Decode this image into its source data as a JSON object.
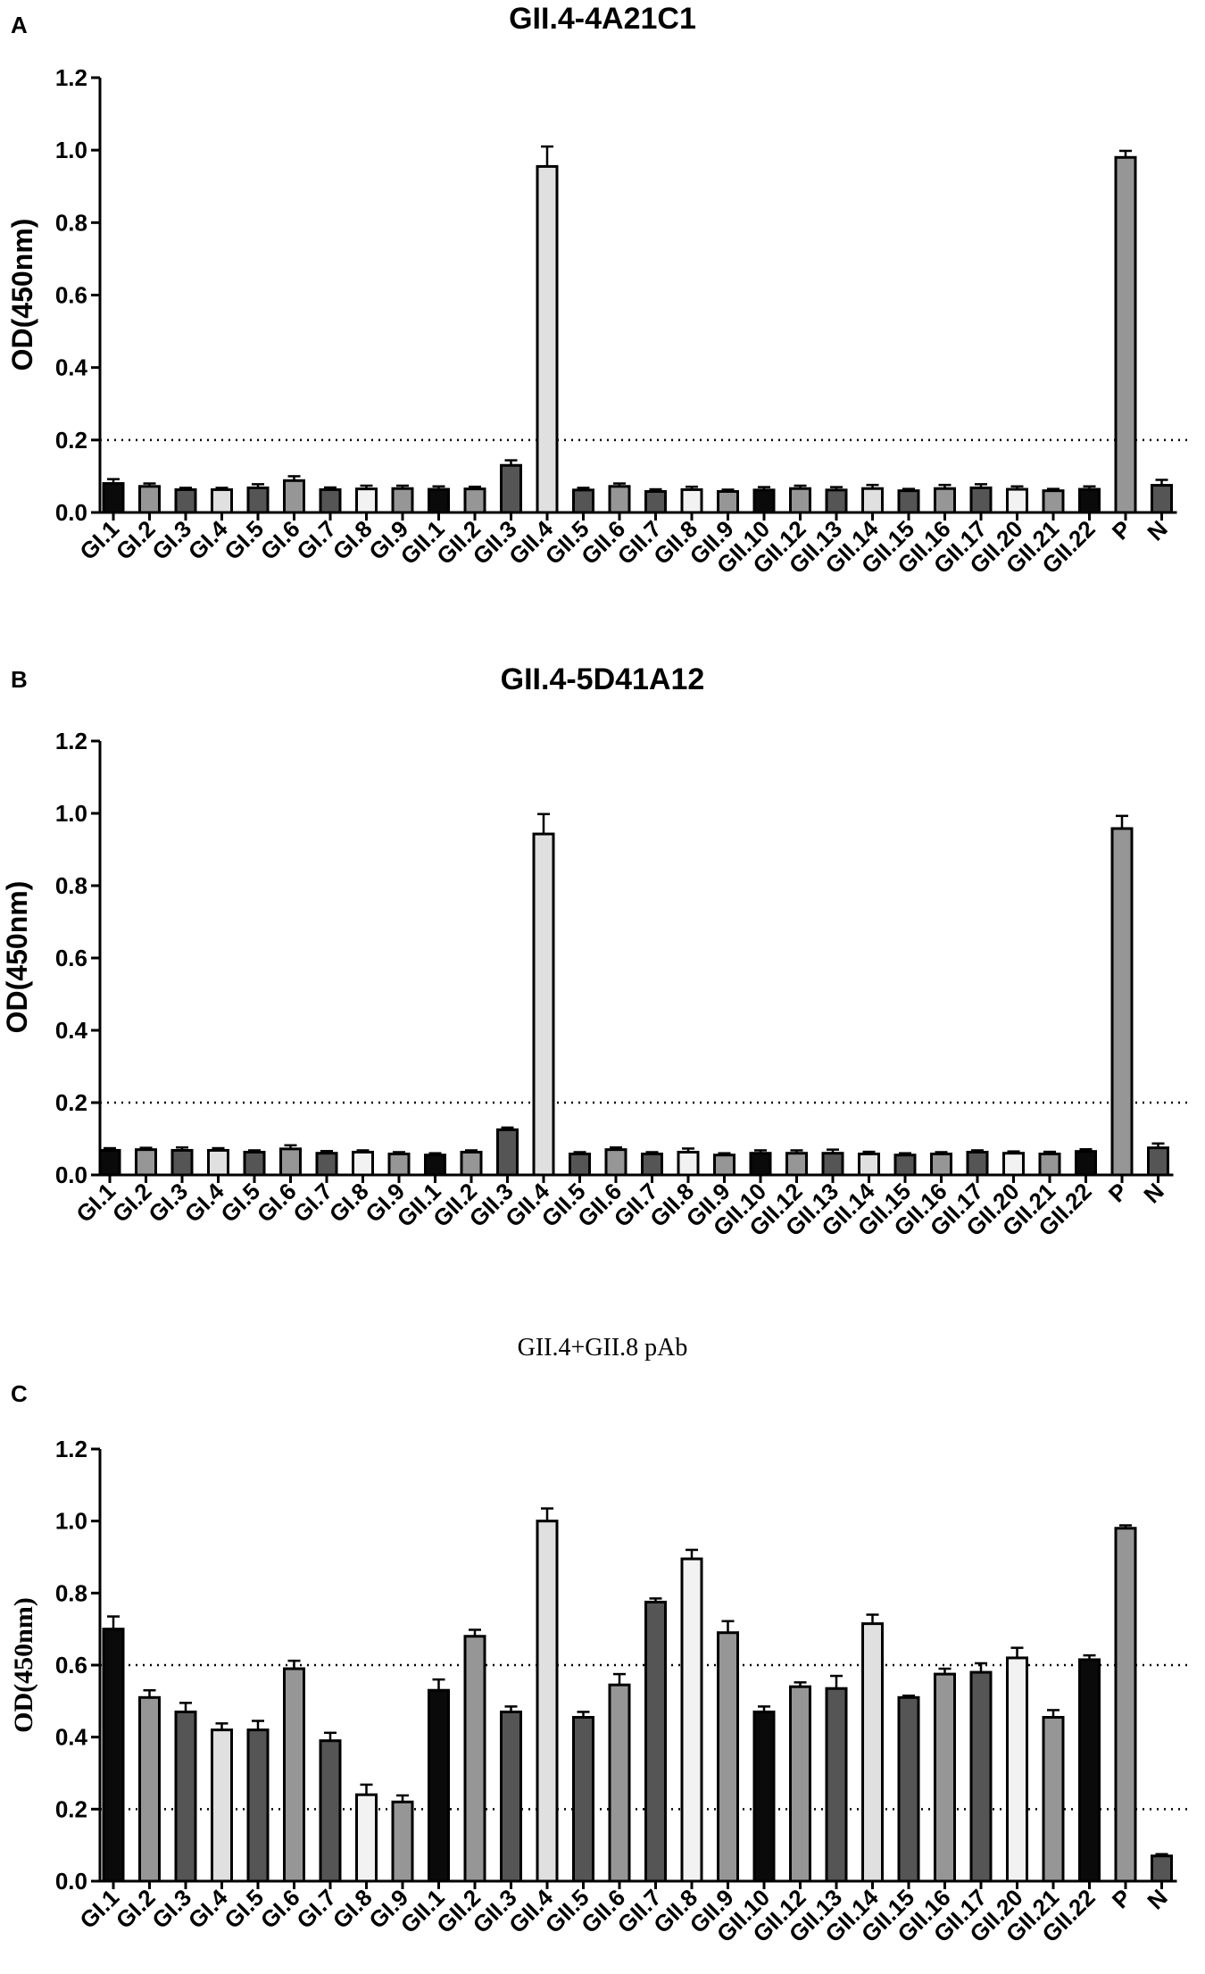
{
  "colors": {
    "black": "#0a0a0a",
    "mid_gray": "#969696",
    "dark_gray": "#555555",
    "light_gray": "#e0e0e0",
    "very_light": "#f2f2f2",
    "axis": "#000000"
  },
  "chart_data": [
    {
      "panel": "A",
      "type": "bar",
      "title": "GII.4-4A21C1",
      "xlabel": "",
      "ylabel": "OD(450nm)",
      "ylim": [
        0,
        1.2
      ],
      "yticks": [
        "0.0",
        "0.2",
        "0.4",
        "0.6",
        "0.8",
        "1.0",
        "1.2"
      ],
      "cutoff_lines": [
        0.2
      ],
      "grid": false,
      "categories": [
        "GI.1",
        "GI.2",
        "GI.3",
        "GI.4",
        "GI.5",
        "GI.6",
        "GI.7",
        "GI.8",
        "GI.9",
        "GII.1",
        "GII.2",
        "GII.3",
        "GII.4",
        "GII.5",
        "GII.6",
        "GII.7",
        "GII.8",
        "GII.9",
        "GII.10",
        "GII.12",
        "GII.13",
        "GII.14",
        "GII.15",
        "GII.16",
        "GII.17",
        "GII.20",
        "GII.21",
        "GII.22",
        "P",
        "N"
      ],
      "values": [
        0.08,
        0.072,
        0.063,
        0.063,
        0.068,
        0.088,
        0.063,
        0.065,
        0.066,
        0.064,
        0.065,
        0.13,
        0.955,
        0.062,
        0.072,
        0.058,
        0.063,
        0.058,
        0.062,
        0.066,
        0.062,
        0.066,
        0.06,
        0.066,
        0.068,
        0.064,
        0.06,
        0.064,
        0.98,
        0.075
      ],
      "errors": [
        0.012,
        0.008,
        0.005,
        0.005,
        0.01,
        0.012,
        0.006,
        0.009,
        0.008,
        0.008,
        0.006,
        0.014,
        0.055,
        0.006,
        0.008,
        0.006,
        0.008,
        0.005,
        0.008,
        0.008,
        0.008,
        0.01,
        0.005,
        0.01,
        0.01,
        0.008,
        0.005,
        0.008,
        0.018,
        0.015
      ]
    },
    {
      "panel": "B",
      "type": "bar",
      "title": "GII.4-5D41A12",
      "xlabel": "",
      "ylabel": "OD(450nm)",
      "ylim": [
        0,
        1.2
      ],
      "yticks": [
        "0.0",
        "0.2",
        "0.4",
        "0.6",
        "0.8",
        "1.0",
        "1.2"
      ],
      "cutoff_lines": [
        0.2
      ],
      "grid": false,
      "categories": [
        "GI.1",
        "GI.2",
        "GI.3",
        "GI.4",
        "GI.5",
        "GI.6",
        "GI.7",
        "GI.8",
        "GI.9",
        "GII.1",
        "GII.2",
        "GII.3",
        "GII.4",
        "GII.5",
        "GII.6",
        "GII.7",
        "GII.8",
        "GII.9",
        "GII.10",
        "GII.12",
        "GII.13",
        "GII.14",
        "GII.15",
        "GII.16",
        "GII.17",
        "GII.20",
        "GII.21",
        "GII.22",
        "P",
        "N"
      ],
      "values": [
        0.068,
        0.07,
        0.068,
        0.068,
        0.063,
        0.072,
        0.06,
        0.063,
        0.058,
        0.055,
        0.063,
        0.125,
        0.943,
        0.058,
        0.07,
        0.058,
        0.063,
        0.055,
        0.06,
        0.06,
        0.06,
        0.058,
        0.055,
        0.058,
        0.063,
        0.06,
        0.058,
        0.065,
        0.958,
        0.075
      ],
      "errors": [
        0.006,
        0.005,
        0.008,
        0.006,
        0.005,
        0.01,
        0.006,
        0.005,
        0.005,
        0.005,
        0.005,
        0.006,
        0.055,
        0.005,
        0.006,
        0.005,
        0.01,
        0.005,
        0.008,
        0.008,
        0.01,
        0.006,
        0.005,
        0.005,
        0.005,
        0.005,
        0.006,
        0.006,
        0.035,
        0.012
      ]
    },
    {
      "panel": "C",
      "type": "bar",
      "title": "GII.4+GII.8 pAb",
      "xlabel": "",
      "ylabel": "OD(450nm)",
      "ylim": [
        0,
        1.2
      ],
      "yticks": [
        "0.0",
        "0.2",
        "0.4",
        "0.6",
        "0.8",
        "1.0",
        "1.2"
      ],
      "cutoff_lines": [
        0.2,
        0.6
      ],
      "grid": false,
      "categories": [
        "GI.1",
        "GI.2",
        "GI.3",
        "GI.4",
        "GI.5",
        "GI.6",
        "GI.7",
        "GI.8",
        "GI.9",
        "GII.1",
        "GII.2",
        "GII.3",
        "GII.4",
        "GII.5",
        "GII.6",
        "GII.7",
        "GII.8",
        "GII.9",
        "GII.10",
        "GII.12",
        "GII.13",
        "GII.14",
        "GII.15",
        "GII.16",
        "GII.17",
        "GII.20",
        "GII.21",
        "GII.22",
        "P",
        "N"
      ],
      "values": [
        0.7,
        0.51,
        0.47,
        0.42,
        0.42,
        0.59,
        0.39,
        0.24,
        0.22,
        0.53,
        0.68,
        0.47,
        1.0,
        0.455,
        0.545,
        0.775,
        0.895,
        0.69,
        0.47,
        0.54,
        0.535,
        0.715,
        0.51,
        0.575,
        0.58,
        0.62,
        0.455,
        0.615,
        0.98,
        0.07
      ],
      "errors": [
        0.035,
        0.02,
        0.025,
        0.018,
        0.025,
        0.022,
        0.022,
        0.028,
        0.018,
        0.03,
        0.018,
        0.015,
        0.035,
        0.015,
        0.03,
        0.01,
        0.025,
        0.032,
        0.015,
        0.012,
        0.035,
        0.025,
        0.005,
        0.015,
        0.025,
        0.028,
        0.02,
        0.012,
        0.008,
        0.005
      ]
    }
  ],
  "bar_style_cycle": [
    "black",
    "mid_gray",
    "dark_gray",
    "light_gray",
    "dark_gray",
    "mid_gray",
    "dark_gray",
    "very_light",
    "mid_gray",
    "black",
    "mid_gray",
    "dark_gray",
    "light_gray",
    "dark_gray",
    "mid_gray",
    "dark_gray",
    "very_light",
    "mid_gray",
    "black",
    "mid_gray",
    "dark_gray",
    "light_gray",
    "dark_gray",
    "mid_gray",
    "dark_gray",
    "very_light",
    "mid_gray",
    "black",
    "mid_gray",
    "dark_gray"
  ]
}
